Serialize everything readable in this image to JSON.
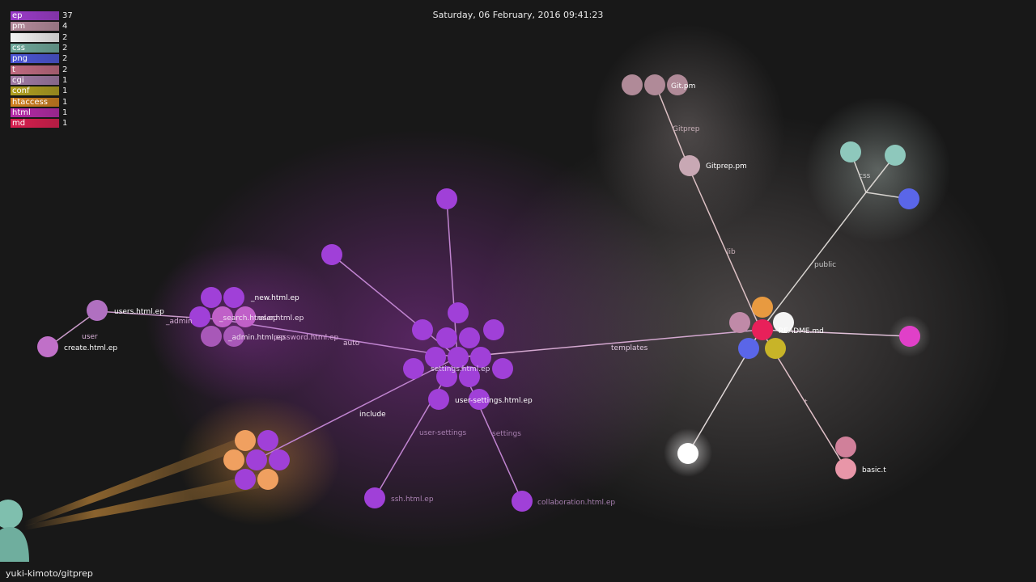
{
  "datetime": "Saturday, 06 February, 2016 09:41:23",
  "repo": "yuki-kimoto/gitprep",
  "legend": [
    {
      "ext": "ep",
      "count": "37",
      "color": "#9b3bc9"
    },
    {
      "ext": "pm",
      "count": "4",
      "color": "#b58b9c"
    },
    {
      "ext": "",
      "count": "2",
      "color": "#f2f2f2"
    },
    {
      "ext": "css",
      "count": "2",
      "color": "#6ea89a"
    },
    {
      "ext": "png",
      "count": "2",
      "color": "#4b55d6"
    },
    {
      "ext": "t",
      "count": "2",
      "color": "#c06a80"
    },
    {
      "ext": "cgi",
      "count": "1",
      "color": "#a07aa5"
    },
    {
      "ext": "conf",
      "count": "1",
      "color": "#b0a020"
    },
    {
      "ext": "htaccess",
      "count": "1",
      "color": "#d0801f"
    },
    {
      "ext": "html",
      "count": "1",
      "color": "#b62aa8"
    },
    {
      "ext": "md",
      "count": "1",
      "color": "#d81e4e"
    }
  ],
  "labels": {
    "git_pm": "Git.pm",
    "gitprep_dir": "Gitprep",
    "gitprep_pm": "Gitprep.pm",
    "css_dir": "css",
    "lib_dir": "lib",
    "public_dir": "public",
    "readme": "README.md",
    "templates_dir": "templates",
    "t_dir": "t",
    "basic_t": "basic.t",
    "new_html": "_new.html.ep",
    "admin_dir": "_admin",
    "search_html": "_search.html.ep",
    "user_html": "user.html.ep",
    "admin_html": "_admin.html.ep",
    "password_html": "password.html.ep",
    "users_html": "users.html.ep",
    "user_dir": "user",
    "create_html": "create.html.ep",
    "auto_dir": "auto",
    "settings_html": "settings.html.ep",
    "user_settings_html": "user-settings.html.ep",
    "include_dir": "include",
    "user_settings_dir": "user-settings",
    "settings_dir": "settings",
    "ssh_html": "ssh.html.ep",
    "collaboration_html": "collaboration.html.ep"
  }
}
